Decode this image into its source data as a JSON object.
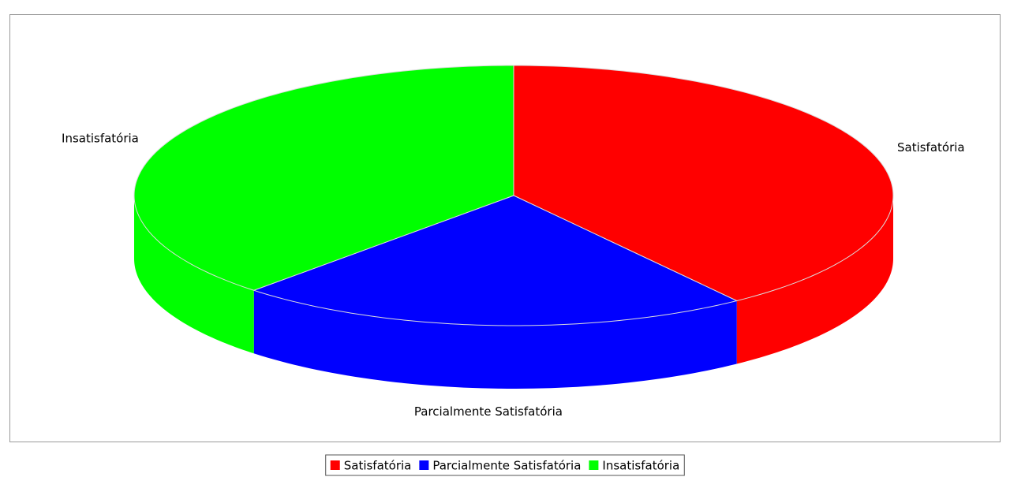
{
  "chart_data": {
    "type": "pie3d",
    "categories": [
      "Satisfatória",
      "Parcialmente Satisfatória",
      "Insatisfatória"
    ],
    "values": [
      40,
      22,
      38
    ],
    "colors": [
      "#ff0000",
      "#0000ff",
      "#00ff00"
    ],
    "legend": "bottom"
  }
}
